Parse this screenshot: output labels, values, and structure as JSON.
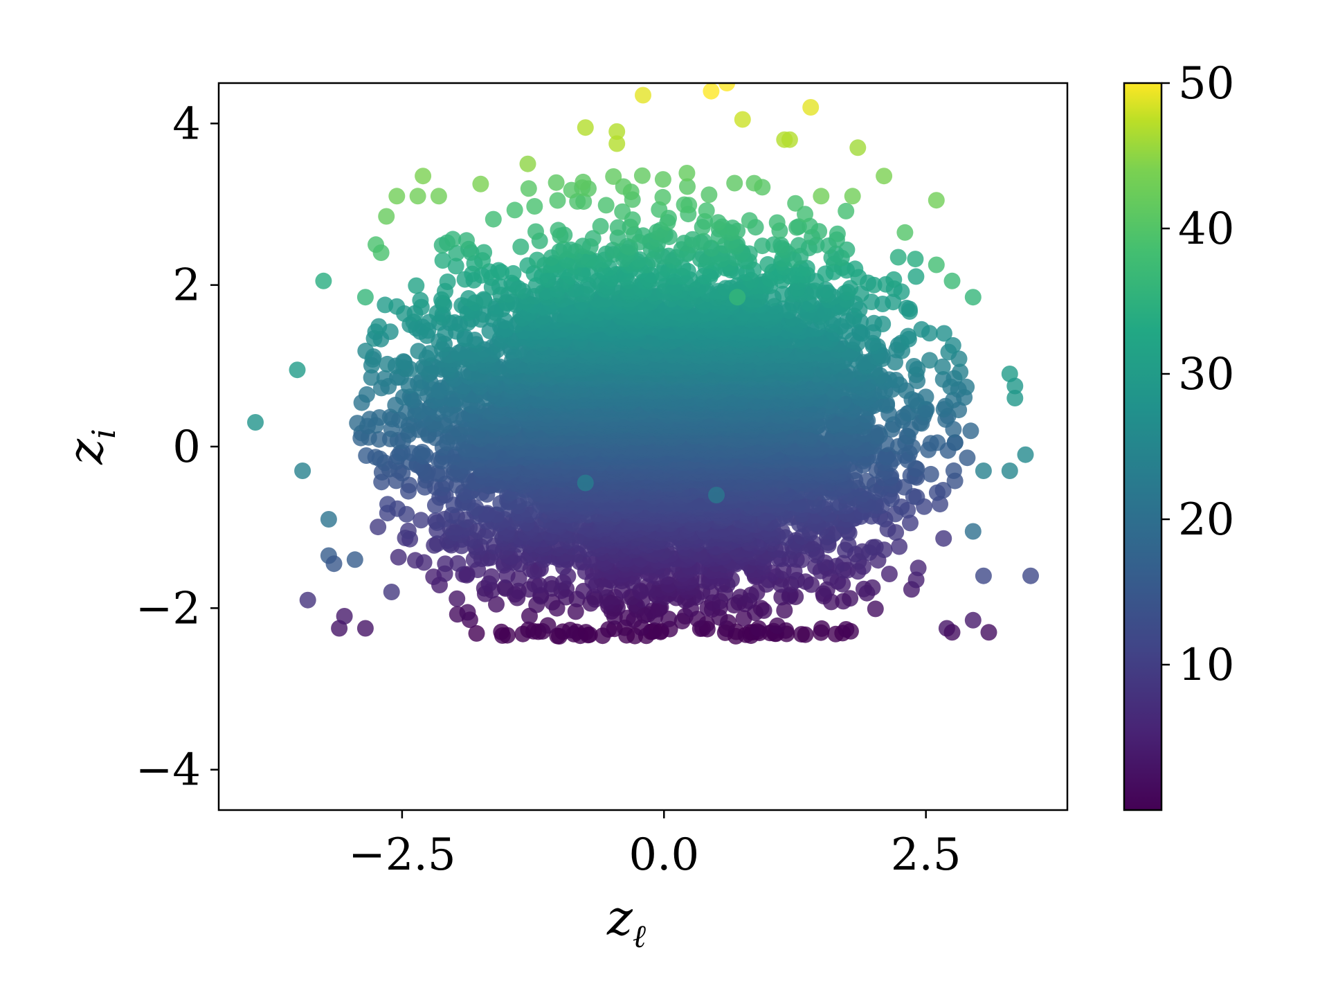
{
  "chart_data": {
    "type": "scatter",
    "title": "",
    "xlabel": "z",
    "xlabel_sub": "ℓ",
    "ylabel": "z",
    "ylabel_sub": "i",
    "xlim": [
      -4.25,
      3.85
    ],
    "ylim": [
      -4.5,
      4.5
    ],
    "x_ticks": [
      -2.5,
      0.0,
      2.5
    ],
    "x_tick_labels": [
      "−2.5",
      "0.0",
      "2.5"
    ],
    "y_ticks": [
      -4,
      -2,
      0,
      2,
      4
    ],
    "y_tick_labels": [
      "−4",
      "−2",
      "0",
      "2",
      "4"
    ],
    "grid": false,
    "colormap": "viridis",
    "colorbar": {
      "range": [
        0,
        50
      ],
      "ticks": [
        10,
        20,
        30,
        40,
        50
      ],
      "tick_labels": [
        "10",
        "20",
        "30",
        "40",
        "50"
      ]
    },
    "marker_opacity": 0.8,
    "distribution": {
      "description": "dense cloud of ~6000 points; color increases with z_i",
      "x_center": 0.0,
      "x_spread": 1.1,
      "y_floor": -2.3,
      "y_peak": 4.5,
      "y_center": 0.3
    },
    "points": [
      [
        -3.9,
        0.3,
        28
      ],
      [
        -3.5,
        0.95,
        30
      ],
      [
        -3.45,
        -0.3,
        24
      ],
      [
        -3.4,
        -1.9,
        8
      ],
      [
        -3.25,
        2.05,
        34
      ],
      [
        -3.2,
        -0.9,
        21
      ],
      [
        -3.1,
        -2.25,
        3
      ],
      [
        -3.05,
        -2.1,
        4
      ],
      [
        -2.85,
        -2.25,
        3
      ],
      [
        -2.6,
        -1.8,
        9
      ],
      [
        -3.2,
        -1.35,
        16
      ],
      [
        -3.15,
        -1.45,
        15
      ],
      [
        -2.95,
        -1.4,
        16
      ],
      [
        -2.85,
        1.85,
        36
      ],
      [
        -2.75,
        2.5,
        39
      ],
      [
        -2.7,
        2.4,
        39
      ],
      [
        -2.65,
        2.85,
        42
      ],
      [
        -2.55,
        3.1,
        43
      ],
      [
        -2.35,
        3.1,
        43
      ],
      [
        -2.3,
        3.35,
        44
      ],
      [
        -2.15,
        3.1,
        43
      ],
      [
        -1.75,
        3.25,
        44
      ],
      [
        -1.3,
        3.5,
        45
      ],
      [
        -0.75,
        3.95,
        47
      ],
      [
        -0.45,
        3.9,
        47
      ],
      [
        -0.45,
        3.75,
        47
      ],
      [
        -0.2,
        4.35,
        49
      ],
      [
        0.45,
        4.4,
        50
      ],
      [
        0.6,
        4.5,
        50
      ],
      [
        0.75,
        4.05,
        48
      ],
      [
        1.15,
        3.8,
        47
      ],
      [
        1.2,
        3.8,
        47
      ],
      [
        1.4,
        4.2,
        49
      ],
      [
        1.5,
        3.1,
        43
      ],
      [
        1.85,
        3.7,
        46
      ],
      [
        1.8,
        3.1,
        43
      ],
      [
        2.1,
        3.35,
        44
      ],
      [
        2.6,
        3.05,
        43
      ],
      [
        2.3,
        2.65,
        40
      ],
      [
        2.6,
        2.25,
        38
      ],
      [
        2.75,
        2.05,
        37
      ],
      [
        2.95,
        1.85,
        36
      ],
      [
        3.3,
        0.9,
        30
      ],
      [
        3.35,
        0.75,
        29
      ],
      [
        3.35,
        0.6,
        29
      ],
      [
        3.45,
        -0.1,
        26
      ],
      [
        3.3,
        -0.3,
        25
      ],
      [
        3.05,
        -0.3,
        24
      ],
      [
        2.95,
        -1.05,
        20
      ],
      [
        3.05,
        -1.6,
        12
      ],
      [
        3.5,
        -1.6,
        12
      ],
      [
        3.1,
        -2.3,
        2
      ],
      [
        2.95,
        -2.15,
        4
      ],
      [
        2.7,
        -2.25,
        3
      ],
      [
        2.75,
        -2.3,
        2
      ],
      [
        0.7,
        1.85,
        36
      ],
      [
        -0.75,
        -0.45,
        23
      ],
      [
        0.5,
        -0.6,
        22
      ]
    ]
  }
}
